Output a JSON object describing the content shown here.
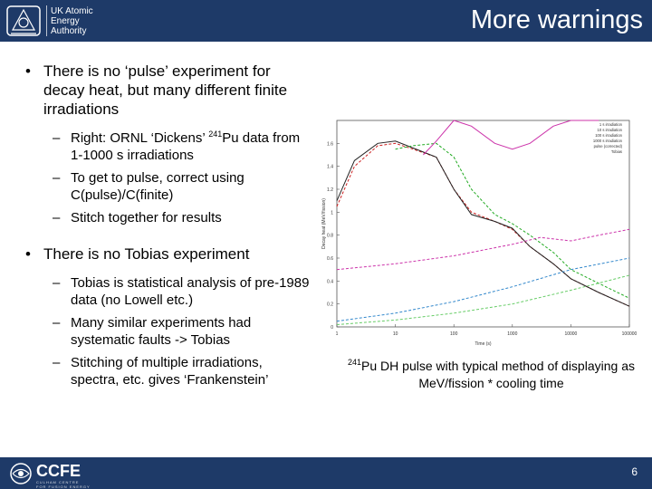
{
  "header": {
    "title": "More warnings",
    "logo_lines": [
      "UK Atomic",
      "Energy",
      "Authority"
    ]
  },
  "bullets": {
    "b1": {
      "text": "There is no ‘pulse’ experiment for decay heat, but many different finite irradiations"
    },
    "b1_subs": [
      {
        "pre": "Right: ORNL ‘Dickens’ ",
        "sup": "241",
        "post": "Pu data from 1-1000 s irradiations"
      },
      {
        "text": "To get to pulse, correct using C(pulse)/C(finite)"
      },
      {
        "text": "Stitch together for results"
      }
    ],
    "b2": {
      "text": "There is no Tobias experiment"
    },
    "b2_subs": [
      {
        "text": "Tobias is statistical analysis of pre-1989 data (no Lowell etc.)"
      },
      {
        "text": "Many similar experiments had systematic faults -> Tobias"
      },
      {
        "text": "Stitching of multiple irradiations, spectra, etc. gives ‘Frankenstein’"
      }
    ]
  },
  "chart_data": {
    "type": "line",
    "ylabel": "Decay heat (MeV/fission)",
    "xlabel": "Time (s)",
    "x_scale": "log",
    "xlim": [
      1,
      100000
    ],
    "ylim": [
      0,
      1.8
    ],
    "x_ticks": [
      "1",
      "10",
      "100",
      "1000",
      "10000",
      "100000"
    ],
    "y_ticks": [
      "0",
      "0.2",
      "0.4",
      "0.6",
      "0.8",
      "1",
      "1.2",
      "1.4",
      "1.6"
    ],
    "legend": [
      "1 s irradiation",
      "10 s irradiation",
      "100 s irradiation",
      "1000 s irradiation",
      "pulse (corrected)",
      "Tobias"
    ],
    "series": [
      {
        "color": "#cc2222",
        "style": "dash",
        "x": [
          1,
          2,
          5,
          10,
          20,
          50,
          100,
          200,
          500,
          1000,
          2000,
          5000,
          10000,
          30000,
          100000
        ],
        "y": [
          1.05,
          1.4,
          1.58,
          1.6,
          1.55,
          1.48,
          1.2,
          1.0,
          0.92,
          0.85,
          0.7,
          0.55,
          0.42,
          0.3,
          0.18
        ]
      },
      {
        "color": "#222222",
        "style": "solid",
        "x": [
          1,
          2,
          5,
          10,
          20,
          50,
          100,
          200,
          500,
          1000,
          2000,
          5000,
          10000,
          30000,
          100000
        ],
        "y": [
          1.1,
          1.45,
          1.6,
          1.62,
          1.56,
          1.48,
          1.2,
          0.98,
          0.92,
          0.86,
          0.7,
          0.55,
          0.42,
          0.3,
          0.18
        ]
      },
      {
        "color": "#22aa22",
        "style": "dash",
        "x": [
          10,
          20,
          50,
          100,
          200,
          500,
          1000,
          2000,
          5000,
          10000,
          30000,
          100000
        ],
        "y": [
          1.55,
          1.58,
          1.6,
          1.48,
          1.2,
          0.98,
          0.9,
          0.8,
          0.65,
          0.5,
          0.38,
          0.25
        ]
      },
      {
        "color": "#cc33aa",
        "style": "solid",
        "x": [
          30,
          50,
          100,
          200,
          500,
          1000,
          2000,
          5000,
          10000,
          30000
        ],
        "y": [
          1.5,
          1.62,
          1.8,
          1.75,
          1.6,
          1.55,
          1.6,
          1.75,
          1.8,
          1.85
        ]
      },
      {
        "color": "#cc33aa",
        "style": "dash",
        "x": [
          1,
          10,
          100,
          1000,
          3000,
          10000,
          30000,
          100000
        ],
        "y": [
          0.5,
          0.55,
          0.62,
          0.72,
          0.78,
          0.75,
          0.8,
          0.85
        ]
      },
      {
        "color": "#3388cc",
        "style": "dash",
        "x": [
          1,
          10,
          100,
          1000,
          10000,
          100000
        ],
        "y": [
          0.05,
          0.12,
          0.22,
          0.35,
          0.5,
          0.6
        ]
      },
      {
        "color": "#66cc66",
        "style": "dash",
        "x": [
          1,
          10,
          100,
          1000,
          10000,
          100000
        ],
        "y": [
          0.02,
          0.06,
          0.12,
          0.2,
          0.32,
          0.45
        ]
      }
    ]
  },
  "caption": {
    "sup": "241",
    "text": "Pu DH pulse with typical method of displaying as MeV/fission * cooling time"
  },
  "footer": {
    "logo_text": "CCFE",
    "logo_sub": "CULHAM CENTRE FOR FUSION ENERGY",
    "page_number": "6"
  }
}
